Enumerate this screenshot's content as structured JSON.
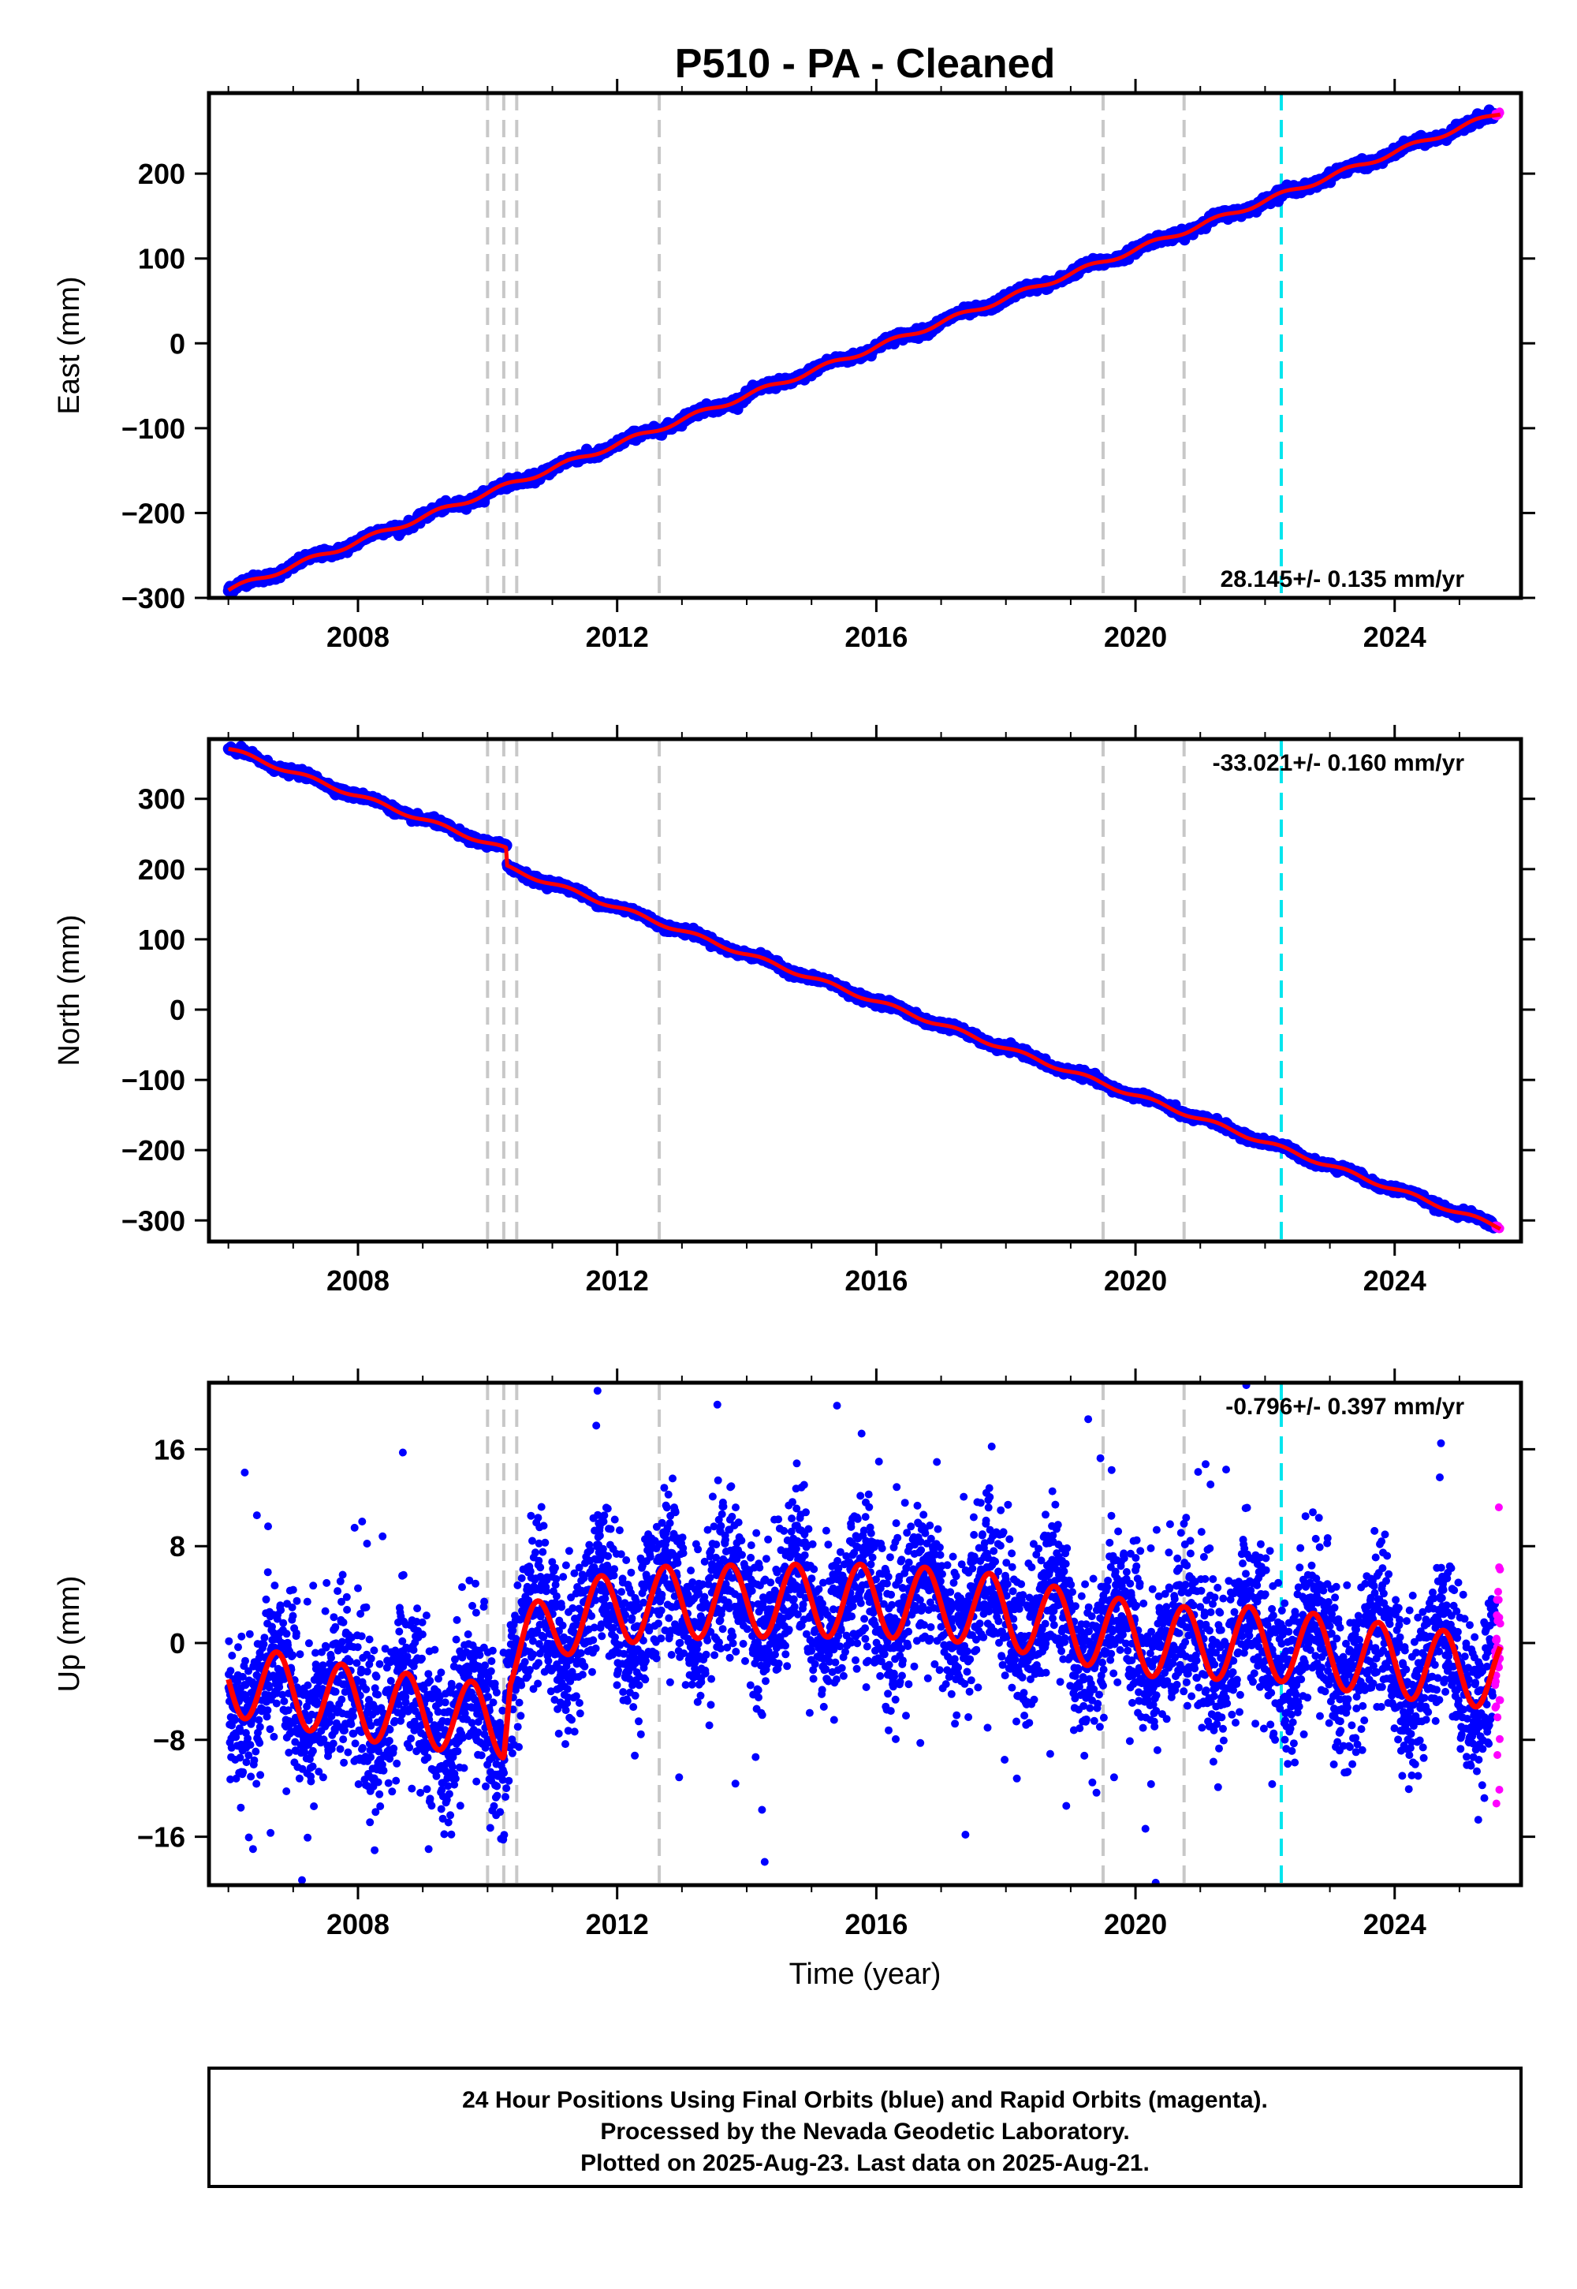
{
  "figure": {
    "title": "P510  - PA - Cleaned",
    "footer": [
      "24 Hour Positions Using Final Orbits (blue) and Rapid Orbits (magenta).",
      "Processed by the Nevada Geodetic Laboratory.",
      "Plotted on 2025-Aug-23. Last data on 2025-Aug-21."
    ],
    "colors": {
      "final_orbits": "#0000ff",
      "rapid_orbits": "#ff00ff",
      "model_fit": "#ff0000",
      "step_lines": "#c8c8c8",
      "cyan_line": "#00e5ee"
    }
  },
  "chart_data": [
    {
      "type": "scatter",
      "panel": "east",
      "xlabel": "",
      "ylabel": "East (mm)",
      "xlim": [
        2005.7,
        2025.95
      ],
      "ylim": [
        -300,
        295
      ],
      "xticks": [
        2008,
        2012,
        2016,
        2020,
        2024
      ],
      "yticks": [
        -300,
        -200,
        -100,
        0,
        100,
        200
      ],
      "grid": false,
      "rate_label": "28.145+/- 0.135 mm/yr",
      "rate_position": "bottom-right",
      "trend": {
        "start": [
          2006.0,
          -291
        ],
        "end": [
          2025.63,
          272
        ]
      },
      "annual_amplitude": 3,
      "steps": [],
      "noise": 2.5,
      "series": [
        {
          "name": "Final orbits",
          "x_range": [
            2006.0,
            2025.55
          ]
        },
        {
          "name": "Rapid orbits",
          "x_range": [
            2025.55,
            2025.63
          ]
        }
      ]
    },
    {
      "type": "scatter",
      "panel": "north",
      "xlabel": "",
      "ylabel": "North (mm)",
      "xlim": [
        2005.7,
        2025.95
      ],
      "ylim": [
        -330,
        385
      ],
      "xticks": [
        2008,
        2012,
        2016,
        2020,
        2024
      ],
      "yticks": [
        -300,
        -200,
        -100,
        0,
        100,
        200,
        300
      ],
      "grid": false,
      "rate_label": "-33.021+/- 0.160 mm/yr",
      "rate_position": "top-right",
      "trend": {
        "start": [
          2006.0,
          371
        ],
        "end": [
          2025.63,
          -310
        ]
      },
      "annual_amplitude": 3,
      "steps": [
        {
          "x": 2010.3,
          "dy": -25
        }
      ],
      "noise": 2.5,
      "series": [
        {
          "name": "Final orbits",
          "x_range": [
            2006.0,
            2025.55
          ]
        },
        {
          "name": "Rapid orbits",
          "x_range": [
            2025.55,
            2025.63
          ]
        }
      ]
    },
    {
      "type": "scatter",
      "panel": "up",
      "xlabel": "Time (year)",
      "ylabel": "Up (mm)",
      "xlim": [
        2005.7,
        2025.95
      ],
      "ylim": [
        -20,
        21.5
      ],
      "xticks": [
        2008,
        2012,
        2016,
        2020,
        2024
      ],
      "yticks": [
        -16,
        -8,
        0,
        8,
        16
      ],
      "grid": false,
      "rate_label": "-0.796+/- 0.397 mm/yr",
      "rate_position": "top-right",
      "seasonal_model": {
        "amplitude": 3,
        "phase_peak_year_fraction": 0.75,
        "baseline_knots": [
          [
            2006.0,
            -3.0
          ],
          [
            2008.0,
            -5.0
          ],
          [
            2010.25,
            -6.5
          ],
          [
            2010.35,
            -1.0
          ],
          [
            2011.2,
            2.0
          ],
          [
            2012.5,
            3.3
          ],
          [
            2014.3,
            3.5
          ],
          [
            2016.0,
            3.5
          ],
          [
            2017.5,
            3.0
          ],
          [
            2019.4,
            1.0
          ],
          [
            2020.5,
            0.0
          ],
          [
            2022.0,
            0.0
          ],
          [
            2024.0,
            -1.5
          ],
          [
            2025.63,
            -2.5
          ]
        ]
      },
      "noise": 3.2,
      "series": [
        {
          "name": "Final orbits",
          "x_range": [
            2006.0,
            2025.55
          ]
        },
        {
          "name": "Rapid orbits",
          "x_range": [
            2025.55,
            2025.63
          ]
        }
      ]
    }
  ],
  "vertical_lines": {
    "gray": [
      2010.0,
      2010.25,
      2010.45,
      2012.65,
      2019.5,
      2020.75
    ],
    "cyan": [
      2022.25
    ]
  }
}
